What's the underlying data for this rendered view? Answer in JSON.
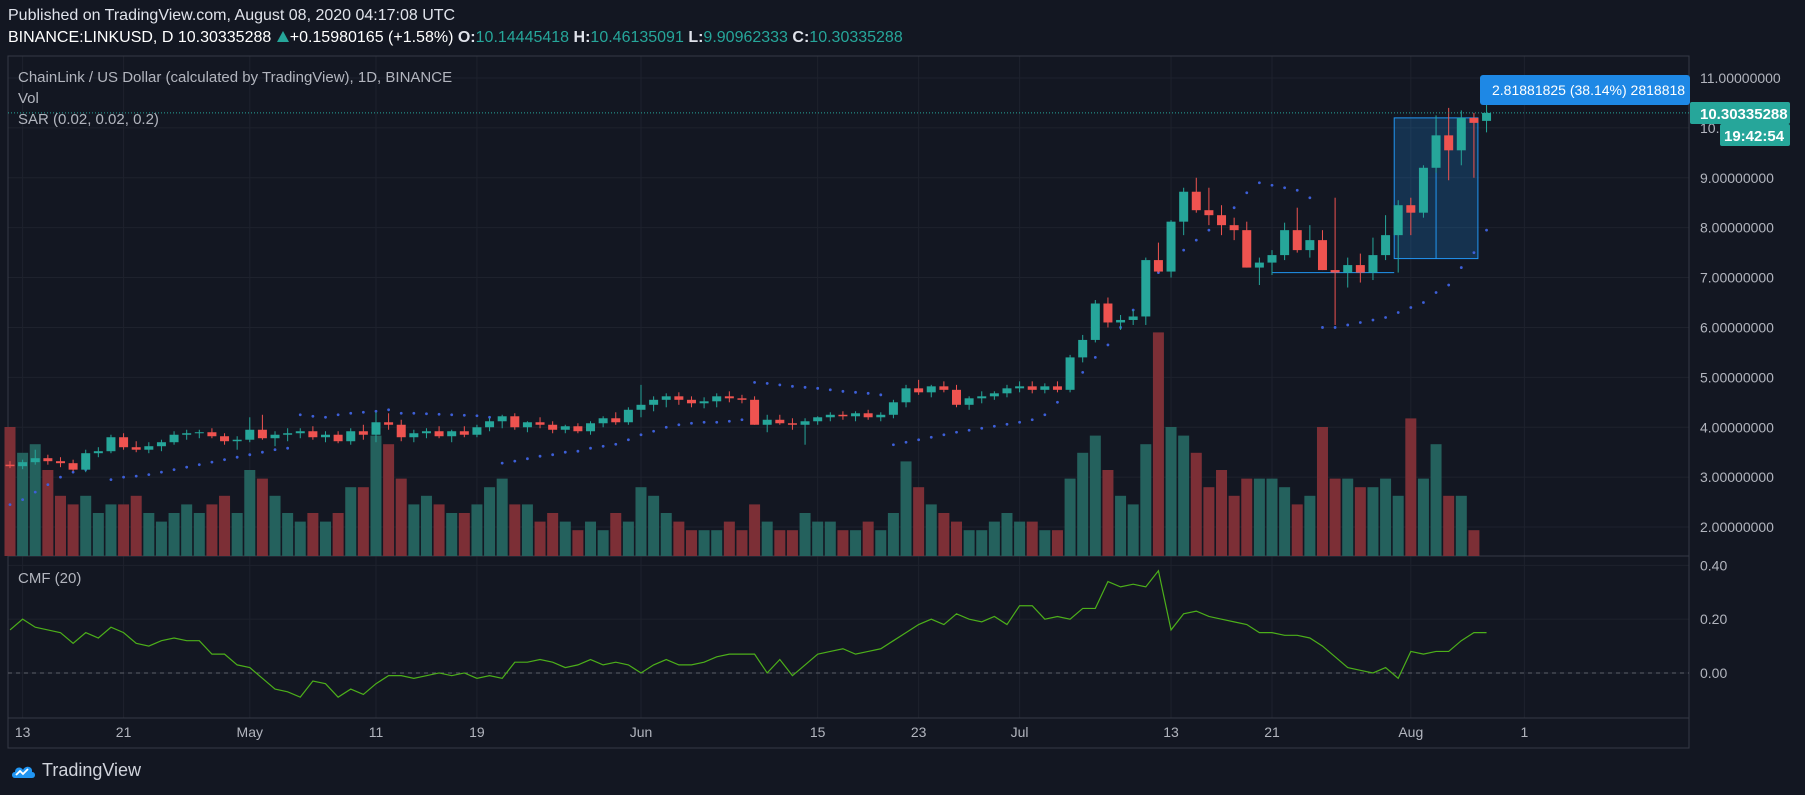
{
  "header": {
    "published": "Published on TradingView.com, August 08, 2020 04:17:08 UTC",
    "symbol": "BINANCE:LINKUSD, D",
    "last": "10.30335288",
    "change": "+0.15980165 (+1.58%)",
    "o_label": "O:",
    "o_value": "10.14445418",
    "h_label": "H:",
    "h_value": "10.46135091",
    "l_label": "L:",
    "l_value": "9.90962333",
    "c_label": "C:",
    "c_value": "10.30335288"
  },
  "legend": {
    "title": "ChainLink / US Dollar (calculated by TradingView), 1D, BINANCE",
    "vol": "Vol",
    "sar": "SAR (0.02, 0.02, 0.2)",
    "cmf": "CMF (20)"
  },
  "price_tag": {
    "last": "10.30335288",
    "countdown": "19:42:54"
  },
  "measure_label": "2.81881825 (38.14%) 2818818",
  "footer": {
    "brand": "TradingView"
  },
  "colors": {
    "up": "#26a69a",
    "down": "#ef5350",
    "cmf": "#4caf1a",
    "sar": "#3d5fd8",
    "measure": "#1e88e5"
  },
  "chart_data": {
    "type": "candlestick",
    "y_axis_price": {
      "range": [
        1.5,
        11.4
      ],
      "ticks": [
        "11.00000000",
        "10.00000000",
        "9.00000000",
        "8.00000000",
        "7.00000000",
        "6.00000000",
        "5.00000000",
        "4.00000000",
        "3.00000000",
        "2.00000000"
      ],
      "tick_values": [
        11,
        10,
        9,
        8,
        7,
        6,
        5,
        4,
        3,
        2
      ]
    },
    "y_axis_cmf": {
      "range": [
        -0.16,
        0.42
      ],
      "ticks": [
        "0.40",
        "0.20",
        "0.00"
      ],
      "tick_values": [
        0.4,
        0.2,
        0.0
      ]
    },
    "x_ticks": [
      {
        "label": "13",
        "i": 1
      },
      {
        "label": "21",
        "i": 9
      },
      {
        "label": "May",
        "i": 19
      },
      {
        "label": "11",
        "i": 29
      },
      {
        "label": "19",
        "i": 37
      },
      {
        "label": "Jun",
        "i": 50
      },
      {
        "label": "15",
        "i": 64
      },
      {
        "label": "23",
        "i": 72
      },
      {
        "label": "Jul",
        "i": 80
      },
      {
        "label": "13",
        "i": 92
      },
      {
        "label": "21",
        "i": 100
      },
      {
        "label": "Aug",
        "i": 111
      },
      {
        "label": "1",
        "i": 120
      }
    ],
    "candles": [
      [
        3.25,
        3.32,
        3.18,
        3.22
      ],
      [
        3.22,
        3.35,
        3.16,
        3.3
      ],
      [
        3.3,
        3.55,
        3.25,
        3.38
      ],
      [
        3.38,
        3.45,
        3.25,
        3.32
      ],
      [
        3.32,
        3.4,
        3.2,
        3.28
      ],
      [
        3.28,
        3.35,
        3.12,
        3.15
      ],
      [
        3.15,
        3.55,
        3.1,
        3.48
      ],
      [
        3.48,
        3.6,
        3.4,
        3.52
      ],
      [
        3.52,
        3.85,
        3.48,
        3.8
      ],
      [
        3.8,
        3.88,
        3.55,
        3.6
      ],
      [
        3.6,
        3.72,
        3.5,
        3.55
      ],
      [
        3.55,
        3.7,
        3.48,
        3.62
      ],
      [
        3.62,
        3.75,
        3.52,
        3.7
      ],
      [
        3.7,
        3.92,
        3.65,
        3.85
      ],
      [
        3.85,
        3.95,
        3.75,
        3.88
      ],
      [
        3.88,
        3.95,
        3.78,
        3.9
      ],
      [
        3.9,
        3.98,
        3.78,
        3.82
      ],
      [
        3.82,
        3.88,
        3.65,
        3.72
      ],
      [
        3.72,
        3.82,
        3.55,
        3.75
      ],
      [
        3.75,
        4.2,
        3.7,
        3.95
      ],
      [
        3.95,
        4.25,
        3.75,
        3.78
      ],
      [
        3.78,
        3.92,
        3.62,
        3.85
      ],
      [
        3.85,
        3.98,
        3.72,
        3.88
      ],
      [
        3.88,
        3.98,
        3.78,
        3.92
      ],
      [
        3.92,
        4.02,
        3.75,
        3.8
      ],
      [
        3.8,
        3.92,
        3.7,
        3.85
      ],
      [
        3.85,
        3.92,
        3.68,
        3.72
      ],
      [
        3.72,
        3.98,
        3.65,
        3.92
      ],
      [
        3.92,
        4.05,
        3.75,
        3.85
      ],
      [
        3.85,
        4.3,
        3.7,
        4.1
      ],
      [
        4.1,
        4.28,
        3.95,
        4.05
      ],
      [
        4.05,
        4.15,
        3.72,
        3.8
      ],
      [
        3.8,
        3.95,
        3.7,
        3.88
      ],
      [
        3.88,
        3.98,
        3.78,
        3.92
      ],
      [
        3.92,
        4.02,
        3.78,
        3.82
      ],
      [
        3.82,
        3.95,
        3.7,
        3.92
      ],
      [
        3.92,
        4.02,
        3.8,
        3.85
      ],
      [
        3.85,
        4.05,
        3.8,
        4.0
      ],
      [
        4.0,
        4.18,
        3.92,
        4.12
      ],
      [
        4.12,
        4.25,
        3.98,
        4.22
      ],
      [
        4.22,
        4.28,
        3.95,
        4.0
      ],
      [
        4.0,
        4.12,
        3.9,
        4.1
      ],
      [
        4.1,
        4.2,
        3.98,
        4.05
      ],
      [
        4.05,
        4.12,
        3.88,
        3.95
      ],
      [
        3.95,
        4.05,
        3.88,
        4.02
      ],
      [
        4.02,
        4.08,
        3.88,
        3.92
      ],
      [
        3.92,
        4.12,
        3.85,
        4.08
      ],
      [
        4.08,
        4.22,
        4.0,
        4.18
      ],
      [
        4.18,
        4.3,
        4.05,
        4.1
      ],
      [
        4.1,
        4.4,
        4.05,
        4.35
      ],
      [
        4.35,
        4.85,
        4.2,
        4.45
      ],
      [
        4.45,
        4.62,
        4.32,
        4.55
      ],
      [
        4.55,
        4.68,
        4.4,
        4.62
      ],
      [
        4.62,
        4.7,
        4.45,
        4.55
      ],
      [
        4.55,
        4.62,
        4.4,
        4.48
      ],
      [
        4.48,
        4.6,
        4.38,
        4.52
      ],
      [
        4.52,
        4.68,
        4.4,
        4.62
      ],
      [
        4.62,
        4.72,
        4.5,
        4.58
      ],
      [
        4.58,
        4.65,
        4.48,
        4.55
      ],
      [
        4.55,
        4.62,
        4.05,
        4.05
      ],
      [
        4.05,
        4.25,
        3.9,
        4.15
      ],
      [
        4.15,
        4.25,
        4.05,
        4.08
      ],
      [
        4.08,
        4.18,
        3.95,
        4.05
      ],
      [
        4.05,
        4.18,
        3.65,
        4.12
      ],
      [
        4.12,
        4.22,
        4.05,
        4.2
      ],
      [
        4.2,
        4.3,
        4.12,
        4.25
      ],
      [
        4.25,
        4.32,
        4.15,
        4.22
      ],
      [
        4.22,
        4.32,
        4.12,
        4.28
      ],
      [
        4.28,
        4.35,
        4.15,
        4.2
      ],
      [
        4.2,
        4.3,
        4.12,
        4.25
      ],
      [
        4.25,
        4.55,
        4.18,
        4.5
      ],
      [
        4.5,
        4.85,
        4.4,
        4.78
      ],
      [
        4.78,
        4.95,
        4.65,
        4.7
      ],
      [
        4.7,
        4.85,
        4.6,
        4.82
      ],
      [
        4.82,
        4.92,
        4.7,
        4.75
      ],
      [
        4.75,
        4.85,
        4.4,
        4.45
      ],
      [
        4.45,
        4.62,
        4.35,
        4.58
      ],
      [
        4.58,
        4.72,
        4.48,
        4.62
      ],
      [
        4.62,
        4.72,
        4.55,
        4.68
      ],
      [
        4.68,
        4.85,
        4.6,
        4.78
      ],
      [
        4.78,
        4.92,
        4.7,
        4.82
      ],
      [
        4.82,
        4.92,
        4.68,
        4.75
      ],
      [
        4.75,
        4.88,
        4.68,
        4.82
      ],
      [
        4.82,
        4.92,
        4.7,
        4.75
      ],
      [
        4.75,
        5.45,
        4.7,
        5.4
      ],
      [
        5.4,
        5.85,
        5.3,
        5.75
      ],
      [
        5.75,
        6.55,
        5.7,
        6.48
      ],
      [
        6.48,
        6.6,
        6.0,
        6.1
      ],
      [
        6.1,
        6.25,
        5.95,
        6.15
      ],
      [
        6.15,
        6.35,
        6.05,
        6.22
      ],
      [
        6.22,
        7.4,
        6.05,
        7.35
      ],
      [
        7.35,
        7.7,
        7.1,
        7.12
      ],
      [
        7.12,
        8.15,
        7.0,
        8.12
      ],
      [
        8.12,
        8.8,
        7.85,
        8.72
      ],
      [
        8.72,
        9.0,
        8.3,
        8.35
      ],
      [
        8.35,
        8.8,
        8.05,
        8.25
      ],
      [
        8.25,
        8.45,
        7.85,
        8.05
      ],
      [
        8.05,
        8.2,
        7.75,
        7.95
      ],
      [
        7.95,
        8.12,
        7.2,
        7.2
      ],
      [
        7.2,
        7.4,
        6.85,
        7.3
      ],
      [
        7.3,
        7.55,
        7.05,
        7.45
      ],
      [
        7.45,
        8.1,
        7.35,
        7.95
      ],
      [
        7.95,
        8.4,
        7.5,
        7.55
      ],
      [
        7.55,
        8.05,
        7.4,
        7.75
      ],
      [
        7.75,
        7.95,
        7.15,
        7.15
      ],
      [
        7.15,
        8.6,
        6.05,
        7.1
      ],
      [
        7.1,
        7.4,
        6.8,
        7.25
      ],
      [
        7.25,
        7.48,
        6.9,
        7.1
      ],
      [
        7.1,
        7.8,
        6.95,
        7.45
      ],
      [
        7.45,
        8.25,
        7.35,
        7.85
      ],
      [
        7.85,
        8.55,
        7.1,
        8.45
      ],
      [
        8.45,
        8.6,
        7.85,
        8.3
      ],
      [
        8.3,
        9.25,
        8.2,
        9.2
      ],
      [
        9.2,
        10.25,
        9.1,
        9.85
      ],
      [
        9.85,
        10.4,
        8.95,
        9.55
      ],
      [
        9.55,
        10.35,
        9.25,
        10.2
      ],
      [
        10.2,
        10.3,
        9.0,
        10.1
      ],
      [
        10.14,
        10.46,
        9.91,
        10.3
      ]
    ],
    "volume": [
      2.8,
      2.5,
      2.6,
      2.3,
      2.0,
      1.9,
      2.0,
      1.8,
      1.9,
      1.9,
      2.0,
      1.8,
      1.7,
      1.8,
      1.9,
      1.8,
      1.9,
      2.0,
      1.8,
      2.3,
      2.2,
      2.0,
      1.8,
      1.7,
      1.8,
      1.7,
      1.8,
      2.1,
      2.1,
      2.7,
      2.6,
      2.2,
      1.9,
      2.0,
      1.9,
      1.8,
      1.8,
      1.9,
      2.1,
      2.2,
      1.9,
      1.9,
      1.7,
      1.8,
      1.7,
      1.6,
      1.7,
      1.6,
      1.8,
      1.7,
      2.1,
      2.0,
      1.8,
      1.7,
      1.6,
      1.6,
      1.6,
      1.7,
      1.6,
      1.9,
      1.7,
      1.6,
      1.6,
      1.8,
      1.7,
      1.7,
      1.6,
      1.6,
      1.7,
      1.6,
      1.8,
      2.4,
      2.1,
      1.9,
      1.8,
      1.7,
      1.6,
      1.6,
      1.7,
      1.8,
      1.7,
      1.7,
      1.6,
      1.6,
      2.2,
      2.5,
      2.7,
      2.3,
      2.0,
      1.9,
      2.6,
      3.9,
      2.8,
      2.7,
      2.5,
      2.1,
      2.3,
      2.0,
      2.2,
      2.2,
      2.2,
      2.1,
      1.9,
      2.0,
      2.8,
      2.2,
      2.2,
      2.1,
      2.1,
      2.2,
      2.0,
      2.9,
      2.2,
      2.6,
      2.0,
      2.0,
      1.6
    ],
    "sar": [
      2.45,
      2.55,
      2.7,
      2.85,
      3.0,
      3.1,
      3.15,
      null,
      2.95,
      3.0,
      3.02,
      3.05,
      3.1,
      3.15,
      3.2,
      3.25,
      3.3,
      3.35,
      3.4,
      3.45,
      3.5,
      3.55,
      3.58,
      4.25,
      4.22,
      4.2,
      4.25,
      4.28,
      4.3,
      4.32,
      4.35,
      4.28,
      4.28,
      4.27,
      4.26,
      4.25,
      4.24,
      4.23,
      4.2,
      3.28,
      3.32,
      3.37,
      3.42,
      3.45,
      3.5,
      3.52,
      3.58,
      3.62,
      3.66,
      3.75,
      3.85,
      3.92,
      4.0,
      4.05,
      4.08,
      4.1,
      4.1,
      4.12,
      4.15,
      4.9,
      4.88,
      4.85,
      4.82,
      4.8,
      4.78,
      4.75,
      4.72,
      4.7,
      4.68,
      4.65,
      3.65,
      3.7,
      3.75,
      3.8,
      3.85,
      3.9,
      3.94,
      3.98,
      4.02,
      4.06,
      4.1,
      4.15,
      4.25,
      4.5,
      4.8,
      5.1,
      5.4,
      5.65,
      6.0,
      6.35,
      6.75,
      7.1,
      7.35,
      7.55,
      7.75,
      7.95,
      8.15,
      8.4,
      8.7,
      8.9,
      8.85,
      8.8,
      8.75,
      8.6,
      6.0,
      6.0,
      6.05,
      6.1,
      6.15,
      6.2,
      6.3,
      6.4,
      6.5,
      6.7,
      6.85,
      7.2,
      7.5,
      7.95
    ],
    "cmf": [
      0.16,
      0.2,
      0.17,
      0.16,
      0.15,
      0.11,
      0.15,
      0.13,
      0.17,
      0.15,
      0.11,
      0.1,
      0.12,
      0.13,
      0.12,
      0.12,
      0.07,
      0.07,
      0.03,
      0.02,
      -0.02,
      -0.06,
      -0.07,
      -0.09,
      -0.03,
      -0.04,
      -0.09,
      -0.06,
      -0.08,
      -0.04,
      -0.01,
      -0.01,
      -0.02,
      -0.01,
      0.0,
      -0.01,
      0.0,
      -0.02,
      -0.01,
      -0.02,
      0.04,
      0.04,
      0.05,
      0.04,
      0.02,
      0.03,
      0.05,
      0.03,
      0.04,
      0.03,
      0.0,
      0.03,
      0.05,
      0.03,
      0.03,
      0.04,
      0.06,
      0.07,
      0.07,
      0.07,
      0.0,
      0.05,
      -0.01,
      0.03,
      0.07,
      0.08,
      0.09,
      0.07,
      0.08,
      0.09,
      0.12,
      0.15,
      0.18,
      0.2,
      0.18,
      0.22,
      0.2,
      0.19,
      0.21,
      0.18,
      0.25,
      0.25,
      0.2,
      0.21,
      0.2,
      0.24,
      0.24,
      0.34,
      0.32,
      0.33,
      0.32,
      0.38,
      0.16,
      0.22,
      0.23,
      0.21,
      0.2,
      0.19,
      0.18,
      0.15,
      0.15,
      0.14,
      0.14,
      0.13,
      0.1,
      0.06,
      0.02,
      0.01,
      0.0,
      0.02,
      -0.02,
      0.08,
      0.07,
      0.08,
      0.08,
      0.12,
      0.15,
      0.15
    ],
    "measure": {
      "from_price": 7.38,
      "to_price": 10.2,
      "from_i": 110,
      "to_i": 116
    }
  }
}
